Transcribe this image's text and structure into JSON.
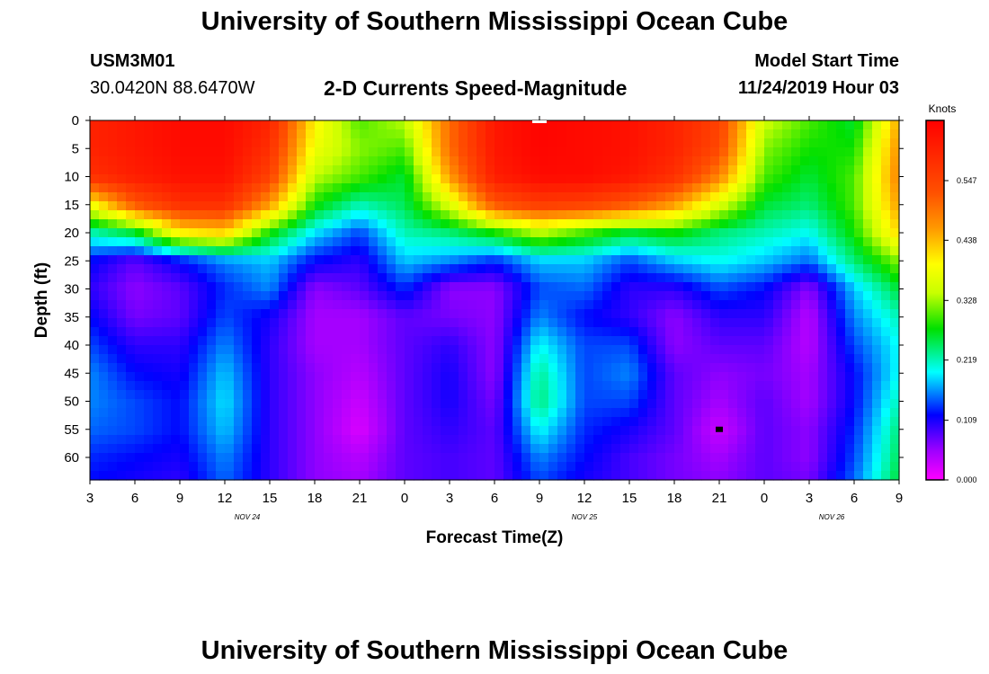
{
  "page": {
    "title": "University of Southern Mississippi Ocean Cube",
    "footer_title": "University of Southern Mississippi Ocean Cube",
    "station_id": "USM3M01",
    "station_coords": "30.0420N 88.6470W",
    "product_title": "2-D Currents Speed-Magnitude",
    "model_start_label": "Model Start Time",
    "model_start_value": "11/24/2019 Hour 03"
  },
  "chart_data": {
    "type": "heatmap",
    "title": "2-D Currents Speed-Magnitude",
    "xlabel": "Forecast Time(Z)",
    "ylabel": "Depth (ft)",
    "x_ticks": [
      "3",
      "6",
      "9",
      "12",
      "15",
      "18",
      "21",
      "0",
      "3",
      "6",
      "9",
      "12",
      "15",
      "18",
      "21",
      "0",
      "3",
      "6",
      "9"
    ],
    "x_hours": [
      0,
      3,
      6,
      9,
      12,
      15,
      18,
      21,
      24,
      27,
      30,
      33,
      36,
      39,
      42,
      45,
      48,
      51,
      54
    ],
    "date_labels": [
      {
        "text": "NOV 24",
        "hour": 10.5
      },
      {
        "text": "NOV 25",
        "hour": 33
      },
      {
        "text": "NOV 26",
        "hour": 49.5
      }
    ],
    "y_ticks": [
      0,
      5,
      10,
      15,
      20,
      25,
      30,
      35,
      40,
      45,
      50,
      55,
      60
    ],
    "ylim": [
      0,
      64
    ],
    "xlim": [
      0,
      54
    ],
    "colorbar": {
      "unit": "Knots",
      "range": [
        0,
        0.657
      ],
      "ticks": [
        "0.000",
        "0.109",
        "0.219",
        "0.328",
        "0.438",
        "0.547"
      ]
    },
    "speed_grid": {
      "description": "current speed (knots) sampled every 3 forecast hours (cols) at depths 0,5,...,60,64 ft (rows)",
      "depths": [
        0,
        5,
        10,
        15,
        20,
        25,
        30,
        35,
        40,
        45,
        50,
        55,
        60,
        64
      ],
      "rows": [
        [
          0.6,
          0.62,
          0.64,
          0.64,
          0.6,
          0.4,
          0.3,
          0.34,
          0.5,
          0.62,
          0.65,
          0.64,
          0.63,
          0.6,
          0.55,
          0.35,
          0.3,
          0.26,
          0.45
        ],
        [
          0.6,
          0.62,
          0.64,
          0.64,
          0.58,
          0.38,
          0.32,
          0.3,
          0.5,
          0.62,
          0.65,
          0.64,
          0.63,
          0.6,
          0.54,
          0.32,
          0.28,
          0.28,
          0.47
        ],
        [
          0.58,
          0.61,
          0.63,
          0.63,
          0.55,
          0.34,
          0.3,
          0.26,
          0.46,
          0.61,
          0.64,
          0.64,
          0.62,
          0.58,
          0.48,
          0.3,
          0.26,
          0.3,
          0.48
        ],
        [
          0.38,
          0.52,
          0.58,
          0.58,
          0.46,
          0.28,
          0.22,
          0.25,
          0.36,
          0.52,
          0.56,
          0.55,
          0.52,
          0.46,
          0.36,
          0.26,
          0.24,
          0.3,
          0.46
        ],
        [
          0.22,
          0.26,
          0.4,
          0.42,
          0.28,
          0.19,
          0.14,
          0.22,
          0.24,
          0.28,
          0.34,
          0.3,
          0.26,
          0.28,
          0.24,
          0.22,
          0.2,
          0.28,
          0.42
        ],
        [
          0.12,
          0.08,
          0.12,
          0.16,
          0.18,
          0.12,
          0.1,
          0.18,
          0.16,
          0.13,
          0.18,
          0.18,
          0.14,
          0.18,
          0.2,
          0.18,
          0.15,
          0.24,
          0.32
        ],
        [
          0.1,
          0.06,
          0.08,
          0.13,
          0.16,
          0.06,
          0.08,
          0.13,
          0.06,
          0.06,
          0.14,
          0.15,
          0.1,
          0.1,
          0.14,
          0.12,
          0.06,
          0.18,
          0.26
        ],
        [
          0.12,
          0.07,
          0.08,
          0.14,
          0.11,
          0.05,
          0.05,
          0.08,
          0.07,
          0.06,
          0.16,
          0.12,
          0.1,
          0.06,
          0.1,
          0.1,
          0.04,
          0.16,
          0.22
        ],
        [
          0.14,
          0.1,
          0.1,
          0.16,
          0.1,
          0.05,
          0.05,
          0.08,
          0.1,
          0.06,
          0.2,
          0.14,
          0.14,
          0.06,
          0.08,
          0.08,
          0.04,
          0.14,
          0.2
        ],
        [
          0.16,
          0.12,
          0.11,
          0.18,
          0.1,
          0.06,
          0.04,
          0.08,
          0.11,
          0.06,
          0.23,
          0.14,
          0.16,
          0.08,
          0.06,
          0.07,
          0.05,
          0.12,
          0.2
        ],
        [
          0.16,
          0.14,
          0.12,
          0.19,
          0.1,
          0.06,
          0.03,
          0.08,
          0.11,
          0.07,
          0.24,
          0.14,
          0.14,
          0.08,
          0.05,
          0.08,
          0.05,
          0.12,
          0.22
        ],
        [
          0.15,
          0.14,
          0.12,
          0.18,
          0.1,
          0.06,
          0.02,
          0.08,
          0.1,
          0.08,
          0.2,
          0.13,
          0.11,
          0.08,
          0.03,
          0.08,
          0.06,
          0.13,
          0.24
        ],
        [
          0.13,
          0.12,
          0.11,
          0.16,
          0.1,
          0.06,
          0.04,
          0.08,
          0.09,
          0.08,
          0.16,
          0.12,
          0.09,
          0.07,
          0.05,
          0.08,
          0.06,
          0.14,
          0.25
        ],
        [
          0.12,
          0.11,
          0.1,
          0.15,
          0.1,
          0.06,
          0.05,
          0.08,
          0.09,
          0.08,
          0.14,
          0.11,
          0.09,
          0.07,
          0.06,
          0.08,
          0.07,
          0.15,
          0.26
        ]
      ]
    },
    "markers": [
      {
        "label": "surface-marker",
        "hour": 30,
        "depth": 0,
        "color": "#ffffff"
      },
      {
        "label": "minimum-marker",
        "hour": 42,
        "depth": 55,
        "color": "#000000"
      }
    ]
  }
}
